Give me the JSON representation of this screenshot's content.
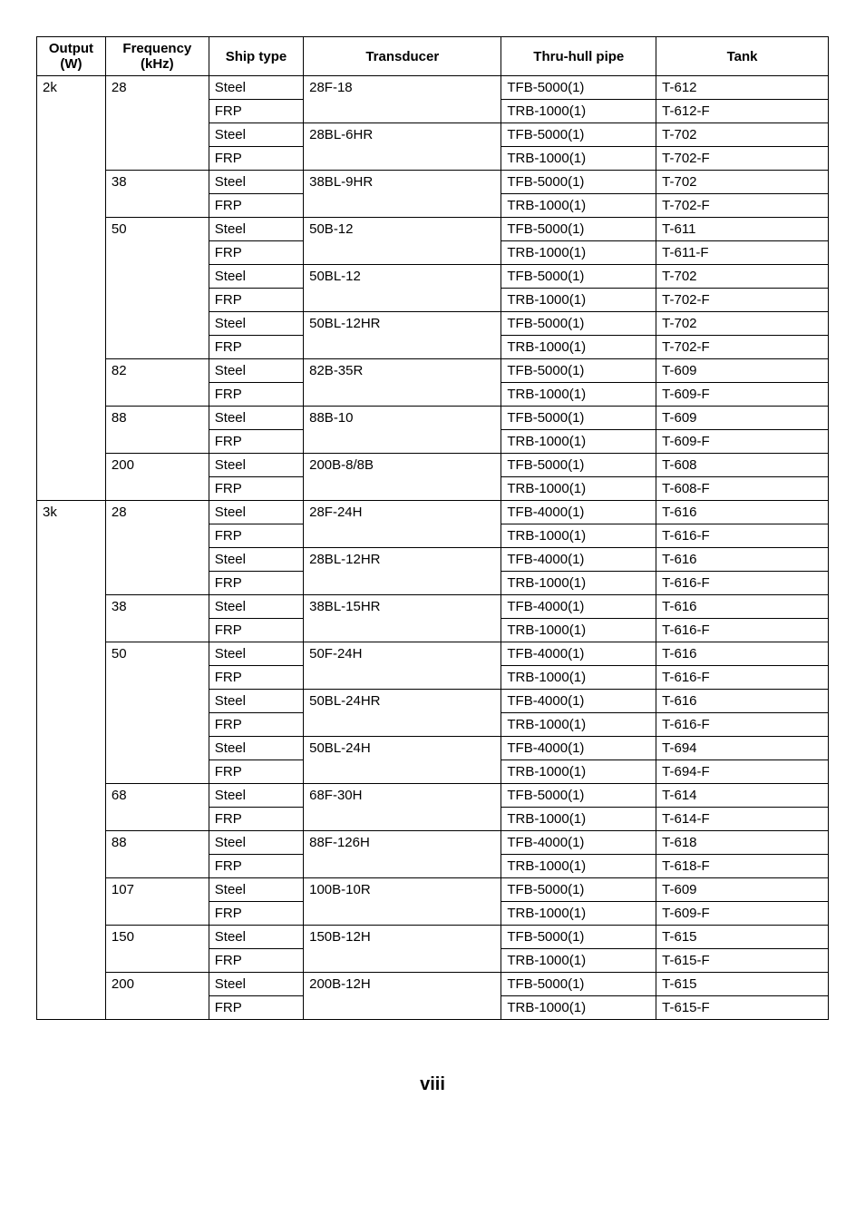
{
  "headers": {
    "output": "Output (W)",
    "frequency": "Frequency (kHz)",
    "ship_type": "Ship type",
    "transducer": "Transducer",
    "thru_hull": "Thru-hull pipe",
    "tank": "Tank"
  },
  "page_number": "viii",
  "rows": [
    {
      "out": "2k",
      "freq": "28",
      "ship": "Steel",
      "trans": "28F-18",
      "pipe": "TFB-5000(1)",
      "tank": "T-612",
      "out_b": "nb",
      "freq_b": "nb",
      "trans_b": "nb"
    },
    {
      "out": "",
      "freq": "",
      "ship": "FRP",
      "trans": "",
      "pipe": "TRB-1000(1)",
      "tank": "T-612-F",
      "out_b": "ntb",
      "freq_b": "ntb",
      "trans_b": "nt"
    },
    {
      "out": "",
      "freq": "",
      "ship": "Steel",
      "trans": "28BL-6HR",
      "pipe": "TFB-5000(1)",
      "tank": "T-702",
      "out_b": "ntb",
      "freq_b": "ntb",
      "trans_b": "nb"
    },
    {
      "out": "",
      "freq": "",
      "ship": "FRP",
      "trans": "",
      "pipe": "TRB-1000(1)",
      "tank": "T-702-F",
      "out_b": "ntb",
      "freq_b": "nt",
      "trans_b": "nt"
    },
    {
      "out": "",
      "freq": "38",
      "ship": "Steel",
      "trans": "38BL-9HR",
      "pipe": "TFB-5000(1)",
      "tank": "T-702",
      "out_b": "ntb",
      "freq_b": "nb",
      "trans_b": "nb"
    },
    {
      "out": "",
      "freq": "",
      "ship": "FRP",
      "trans": "",
      "pipe": "TRB-1000(1)",
      "tank": "T-702-F",
      "out_b": "ntb",
      "freq_b": "nt",
      "trans_b": "nt"
    },
    {
      "out": "",
      "freq": "50",
      "ship": "Steel",
      "trans": "50B-12",
      "pipe": "TFB-5000(1)",
      "tank": "T-611",
      "out_b": "ntb",
      "freq_b": "nb",
      "trans_b": "nb"
    },
    {
      "out": "",
      "freq": "",
      "ship": "FRP",
      "trans": "",
      "pipe": "TRB-1000(1)",
      "tank": "T-611-F",
      "out_b": "ntb",
      "freq_b": "ntb",
      "trans_b": "nt"
    },
    {
      "out": "",
      "freq": "",
      "ship": "Steel",
      "trans": "50BL-12",
      "pipe": "TFB-5000(1)",
      "tank": "T-702",
      "out_b": "ntb",
      "freq_b": "ntb",
      "trans_b": "nb"
    },
    {
      "out": "",
      "freq": "",
      "ship": "FRP",
      "trans": "",
      "pipe": "TRB-1000(1)",
      "tank": "T-702-F",
      "out_b": "ntb",
      "freq_b": "ntb",
      "trans_b": "nt"
    },
    {
      "out": "",
      "freq": "",
      "ship": "Steel",
      "trans": "50BL-12HR",
      "pipe": "TFB-5000(1)",
      "tank": "T-702",
      "out_b": "ntb",
      "freq_b": "ntb",
      "trans_b": "nb"
    },
    {
      "out": "",
      "freq": "",
      "ship": "FRP",
      "trans": "",
      "pipe": "TRB-1000(1)",
      "tank": "T-702-F",
      "out_b": "ntb",
      "freq_b": "nt",
      "trans_b": "nt"
    },
    {
      "out": "",
      "freq": "82",
      "ship": "Steel",
      "trans": "82B-35R",
      "pipe": "TFB-5000(1)",
      "tank": "T-609",
      "out_b": "ntb",
      "freq_b": "nb",
      "trans_b": "nb"
    },
    {
      "out": "",
      "freq": "",
      "ship": "FRP",
      "trans": "",
      "pipe": "TRB-1000(1)",
      "tank": "T-609-F",
      "out_b": "ntb",
      "freq_b": "nt",
      "trans_b": "nt"
    },
    {
      "out": "",
      "freq": "88",
      "ship": "Steel",
      "trans": "88B-10",
      "pipe": "TFB-5000(1)",
      "tank": "T-609",
      "out_b": "ntb",
      "freq_b": "nb",
      "trans_b": "nb"
    },
    {
      "out": "",
      "freq": "",
      "ship": "FRP",
      "trans": "",
      "pipe": "TRB-1000(1)",
      "tank": "T-609-F",
      "out_b": "ntb",
      "freq_b": "nt",
      "trans_b": "nt"
    },
    {
      "out": "",
      "freq": "200",
      "ship": "Steel",
      "trans": "200B-8/8B",
      "pipe": "TFB-5000(1)",
      "tank": "T-608",
      "out_b": "ntb",
      "freq_b": "nb",
      "trans_b": "nb"
    },
    {
      "out": "",
      "freq": "",
      "ship": "FRP",
      "trans": "",
      "pipe": "TRB-1000(1)",
      "tank": "T-608-F",
      "out_b": "nt",
      "freq_b": "nt",
      "trans_b": "nt"
    },
    {
      "out": "3k",
      "freq": "28",
      "ship": "Steel",
      "trans": "28F-24H",
      "pipe": "TFB-4000(1)",
      "tank": "T-616",
      "out_b": "nb",
      "freq_b": "nb",
      "trans_b": "nb"
    },
    {
      "out": "",
      "freq": "",
      "ship": "FRP",
      "trans": "",
      "pipe": "TRB-1000(1)",
      "tank": "T-616-F",
      "out_b": "ntb",
      "freq_b": "ntb",
      "trans_b": "nt"
    },
    {
      "out": "",
      "freq": "",
      "ship": "Steel",
      "trans": "28BL-12HR",
      "pipe": "TFB-4000(1)",
      "tank": "T-616",
      "out_b": "ntb",
      "freq_b": "ntb",
      "trans_b": "nb"
    },
    {
      "out": "",
      "freq": "",
      "ship": "FRP",
      "trans": "",
      "pipe": "TRB-1000(1)",
      "tank": "T-616-F",
      "out_b": "ntb",
      "freq_b": "nt",
      "trans_b": "nt"
    },
    {
      "out": "",
      "freq": "38",
      "ship": "Steel",
      "trans": "38BL-15HR",
      "pipe": "TFB-4000(1)",
      "tank": "T-616",
      "out_b": "ntb",
      "freq_b": "nb",
      "trans_b": "nb"
    },
    {
      "out": "",
      "freq": "",
      "ship": "FRP",
      "trans": "",
      "pipe": "TRB-1000(1)",
      "tank": "T-616-F",
      "out_b": "ntb",
      "freq_b": "nt",
      "trans_b": "nt"
    },
    {
      "out": "",
      "freq": "50",
      "ship": "Steel",
      "trans": "50F-24H",
      "pipe": "TFB-4000(1)",
      "tank": "T-616",
      "out_b": "ntb",
      "freq_b": "nb",
      "trans_b": "nb"
    },
    {
      "out": "",
      "freq": "",
      "ship": "FRP",
      "trans": "",
      "pipe": "TRB-1000(1)",
      "tank": "T-616-F",
      "out_b": "ntb",
      "freq_b": "ntb",
      "trans_b": "nt"
    },
    {
      "out": "",
      "freq": "",
      "ship": "Steel",
      "trans": "50BL-24HR",
      "pipe": "TFB-4000(1)",
      "tank": "T-616",
      "out_b": "ntb",
      "freq_b": "ntb",
      "trans_b": "nb"
    },
    {
      "out": "",
      "freq": "",
      "ship": "FRP",
      "trans": "",
      "pipe": "TRB-1000(1)",
      "tank": "T-616-F",
      "out_b": "ntb",
      "freq_b": "ntb",
      "trans_b": "nt"
    },
    {
      "out": "",
      "freq": "",
      "ship": "Steel",
      "trans": "50BL-24H",
      "pipe": "TFB-4000(1)",
      "tank": "T-694",
      "out_b": "ntb",
      "freq_b": "ntb",
      "trans_b": "nb"
    },
    {
      "out": "",
      "freq": "",
      "ship": "FRP",
      "trans": "",
      "pipe": "TRB-1000(1)",
      "tank": "T-694-F",
      "out_b": "ntb",
      "freq_b": "nt",
      "trans_b": "nt"
    },
    {
      "out": "",
      "freq": "68",
      "ship": "Steel",
      "trans": "68F-30H",
      "pipe": "TFB-5000(1)",
      "tank": "T-614",
      "out_b": "ntb",
      "freq_b": "nb",
      "trans_b": "nb"
    },
    {
      "out": "",
      "freq": "",
      "ship": "FRP",
      "trans": "",
      "pipe": "TRB-1000(1)",
      "tank": "T-614-F",
      "out_b": "ntb",
      "freq_b": "nt",
      "trans_b": "nt"
    },
    {
      "out": "",
      "freq": "88",
      "ship": "Steel",
      "trans": "88F-126H",
      "pipe": "TFB-4000(1)",
      "tank": "T-618",
      "out_b": "ntb",
      "freq_b": "nb",
      "trans_b": "nb"
    },
    {
      "out": "",
      "freq": "",
      "ship": "FRP",
      "trans": "",
      "pipe": "TRB-1000(1)",
      "tank": "T-618-F",
      "out_b": "ntb",
      "freq_b": "nt",
      "trans_b": "nt"
    },
    {
      "out": "",
      "freq": "107",
      "ship": "Steel",
      "trans": "100B-10R",
      "pipe": "TFB-5000(1)",
      "tank": "T-609",
      "out_b": "ntb",
      "freq_b": "nb",
      "trans_b": "nb"
    },
    {
      "out": "",
      "freq": "",
      "ship": "FRP",
      "trans": "",
      "pipe": "TRB-1000(1)",
      "tank": "T-609-F",
      "out_b": "ntb",
      "freq_b": "nt",
      "trans_b": "nt"
    },
    {
      "out": "",
      "freq": "150",
      "ship": "Steel",
      "trans": "150B-12H",
      "pipe": "TFB-5000(1)",
      "tank": "T-615",
      "out_b": "ntb",
      "freq_b": "nb",
      "trans_b": "nb"
    },
    {
      "out": "",
      "freq": "",
      "ship": "FRP",
      "trans": "",
      "pipe": "TRB-1000(1)",
      "tank": "T-615-F",
      "out_b": "ntb",
      "freq_b": "nt",
      "trans_b": "nt"
    },
    {
      "out": "",
      "freq": "200",
      "ship": "Steel",
      "trans": "200B-12H",
      "pipe": "TFB-5000(1)",
      "tank": "T-615",
      "out_b": "ntb",
      "freq_b": "nb",
      "trans_b": "nb"
    },
    {
      "out": "",
      "freq": "",
      "ship": "FRP",
      "trans": "",
      "pipe": "TRB-1000(1)",
      "tank": "T-615-F",
      "out_b": "nt",
      "freq_b": "nt",
      "trans_b": "nt"
    }
  ]
}
